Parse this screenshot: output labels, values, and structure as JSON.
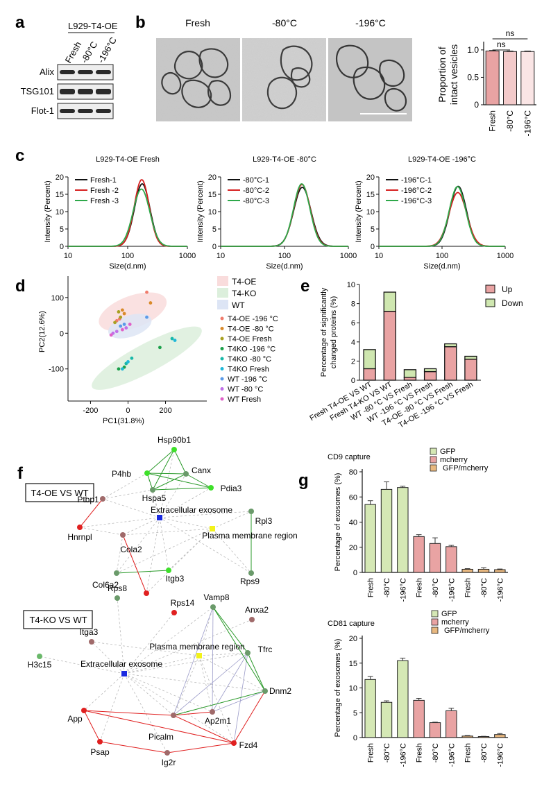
{
  "panel_letters": {
    "a": "a",
    "b": "b",
    "c": "c",
    "d": "d",
    "e": "e",
    "f": "f",
    "g": "g"
  },
  "panel_a": {
    "header": "L929-T4-OE",
    "lanes": [
      "Fresh",
      "-80°C",
      "-196°C"
    ],
    "markers": [
      "Alix",
      "TSG101",
      "Flot-1"
    ]
  },
  "panel_b": {
    "images": [
      "Fresh",
      "-80°C",
      "-196°C"
    ]
  },
  "chart_data": [
    {
      "id": "b_bar",
      "type": "bar",
      "ylabel": "Proportion of intact vesicles",
      "ylabel_lines": [
        "Proportion of",
        "intact vesicles"
      ],
      "categories": [
        "Fresh",
        "-80°C",
        "-196°C"
      ],
      "values": [
        0.98,
        0.97,
        0.97
      ],
      "errors": [
        0.01,
        0.01,
        0.01
      ],
      "colors": [
        "#e9a3a3",
        "#f3caca",
        "#fae5e5"
      ],
      "ylim": [
        0,
        1.1
      ],
      "yticks": [
        0,
        0.5,
        1.0
      ],
      "ytick_labels": [
        "0",
        "0.5",
        "1.0"
      ],
      "annotations": [
        "ns",
        "ns"
      ]
    },
    {
      "id": "c1",
      "type": "line",
      "title": "L929-T4-OE Fresh",
      "xlabel": "Size(d.nm)",
      "ylabel": "Intensity (Percent)",
      "xscale": "log",
      "xlim": [
        10,
        1000
      ],
      "xticks": [
        10,
        100,
        1000
      ],
      "ylim": [
        0,
        20
      ],
      "yticks": [
        0,
        5,
        10,
        15,
        20
      ],
      "series": [
        {
          "name": "Fresh-1",
          "color": "#111111",
          "peak": 18.0,
          "center": 175,
          "width": 0.13
        },
        {
          "name": "Fresh -2",
          "color": "#d62020",
          "peak": 19.2,
          "center": 172,
          "width": 0.125
        },
        {
          "name": "Fresh -3",
          "color": "#2ea84a",
          "peak": 16.5,
          "center": 170,
          "width": 0.14
        }
      ]
    },
    {
      "id": "c2",
      "type": "line",
      "title": "L929-T4-OE   -80°C",
      "xlabel": "Size(d.nm)",
      "ylabel": "Intensity (Percent)",
      "xscale": "log",
      "xlim": [
        10,
        1000
      ],
      "xticks": [
        10,
        100,
        1000
      ],
      "ylim": [
        0,
        20
      ],
      "yticks": [
        0,
        5,
        10,
        15,
        20
      ],
      "series": [
        {
          "name": "-80°C-1",
          "color": "#111111",
          "peak": 17.0,
          "center": 190,
          "width": 0.135
        },
        {
          "name": "-80°C-2",
          "color": "#d62020",
          "peak": 17.8,
          "center": 188,
          "width": 0.13
        },
        {
          "name": "-80°C-3",
          "color": "#2ea84a",
          "peak": 18.0,
          "center": 186,
          "width": 0.128
        }
      ]
    },
    {
      "id": "c3",
      "type": "line",
      "title": "L929-T4-OE   -196°C",
      "xlabel": "Size(d.nm)",
      "ylabel": "Intensity (Percent)",
      "xscale": "log",
      "xlim": [
        10,
        1000
      ],
      "xticks": [
        10,
        100,
        1000
      ],
      "ylim": [
        0,
        20
      ],
      "yticks": [
        0,
        5,
        10,
        15,
        20
      ],
      "series": [
        {
          "name": "-196°C-1",
          "color": "#111111",
          "peak": 17.3,
          "center": 180,
          "width": 0.13
        },
        {
          "name": "-196°C-2",
          "color": "#d62020",
          "peak": 15.5,
          "center": 178,
          "width": 0.14
        },
        {
          "name": "-196°C-3",
          "color": "#2ea84a",
          "peak": 17.2,
          "center": 176,
          "width": 0.13
        }
      ]
    },
    {
      "id": "d_pca",
      "type": "scatter",
      "xlabel": "PC1(31.8%)",
      "ylabel": "PC2(12.6%)",
      "xlim": [
        -320,
        420
      ],
      "ylim": [
        -190,
        160
      ],
      "xticks": [
        -200,
        0,
        200
      ],
      "yticks": [
        -100,
        0,
        100
      ],
      "group_legend": [
        {
          "name": "T4-OE",
          "color": "#f9dcdc"
        },
        {
          "name": "T4-KO",
          "color": "#dcefdc"
        },
        {
          "name": "WT",
          "color": "#dde5f5"
        }
      ],
      "series": [
        {
          "name": "T4-OE -196 °C",
          "color": "#f07c6c",
          "points": [
            [
              100,
              115
            ],
            [
              -45,
              40
            ],
            [
              -60,
              35
            ]
          ]
        },
        {
          "name": "T4-OE -80 °C",
          "color": "#d98a2a",
          "points": [
            [
              -30,
              65
            ],
            [
              120,
              85
            ],
            [
              -20,
              55
            ]
          ]
        },
        {
          "name": "T4-OE Fresh",
          "color": "#a8a020",
          "points": [
            [
              -50,
              60
            ],
            [
              -70,
              30
            ],
            [
              -40,
              45
            ]
          ]
        },
        {
          "name": "T4KO -196 °C",
          "color": "#1aa04a",
          "points": [
            [
              170,
              -40
            ],
            [
              -20,
              -95
            ],
            [
              -50,
              -100
            ]
          ]
        },
        {
          "name": "T4KO -80 °C",
          "color": "#18b8a8",
          "points": [
            [
              235,
              -15
            ],
            [
              -10,
              -85
            ],
            [
              20,
              -70
            ]
          ]
        },
        {
          "name": "T4KO Fresh",
          "color": "#20b8d8",
          "points": [
            [
              -30,
              -100
            ],
            [
              250,
              -20
            ],
            [
              0,
              -80
            ]
          ]
        },
        {
          "name": "WT -196 °C",
          "color": "#5a9ae8",
          "points": [
            [
              100,
              45
            ],
            [
              -40,
              20
            ],
            [
              -20,
              25
            ]
          ]
        },
        {
          "name": "WT -80 °C",
          "color": "#c070e8",
          "points": [
            [
              -80,
              0
            ],
            [
              -60,
              5
            ],
            [
              -10,
              15
            ]
          ]
        },
        {
          "name": "WT Fresh",
          "color": "#e060c8",
          "points": [
            [
              -90,
              -5
            ],
            [
              -30,
              10
            ],
            [
              10,
              25
            ]
          ]
        }
      ]
    },
    {
      "id": "e_bar",
      "type": "bar",
      "stacked": true,
      "ylabel": "Percentage of significantly changed proteins (%)",
      "ylabel_lines": [
        "Percentage of significantly",
        "changed proteins (%)"
      ],
      "categories": [
        "Fresh   T4-OE VS WT",
        "Fresh   T4-KO VS WT",
        "WT   -80 °C VS Fresh",
        "WT   -196 °C VS Fresh",
        "T4-OE   -80 °C VS Fresh",
        "T4-OE   -196 °C VS Fresh"
      ],
      "series": [
        {
          "name": "Up",
          "color": "#e9a3a3",
          "values": [
            1.2,
            7.2,
            0.3,
            0.9,
            3.5,
            2.2
          ]
        },
        {
          "name": "Down",
          "color": "#cfe7b0",
          "values": [
            2.0,
            2.0,
            0.8,
            0.3,
            0.3,
            0.3
          ]
        }
      ],
      "ylim": [
        0,
        10
      ],
      "yticks": [
        0,
        2,
        4,
        6,
        8,
        10
      ]
    },
    {
      "id": "g_cd9",
      "type": "bar",
      "title": "CD9 capture",
      "ylabel": "Percentage of exosomes (%)",
      "categories": [
        "Fresh",
        "-80°C",
        "-196°C",
        "Fresh",
        "-80°C",
        "-196°C",
        "Fresh",
        "-80°C",
        "-196°C"
      ],
      "values": [
        54,
        66,
        67.5,
        28.5,
        23,
        20.5,
        2.5,
        2.5,
        2.2
      ],
      "errors": [
        3,
        6,
        1,
        1.5,
        4.5,
        1,
        0.5,
        1.2,
        0.5
      ],
      "groups": [
        0,
        0,
        0,
        1,
        1,
        1,
        2,
        2,
        2
      ],
      "legend": [
        {
          "name": "GFP",
          "color": "#d5e8b5"
        },
        {
          "name": "mcherry",
          "color": "#e9a3a3"
        },
        {
          "name": "GFP/mcherry",
          "color": "#e8b880"
        }
      ],
      "ylim": [
        0,
        80
      ],
      "yticks": [
        0,
        20,
        40,
        60,
        80
      ]
    },
    {
      "id": "g_cd81",
      "type": "bar",
      "title": "CD81 capture",
      "ylabel": "Percentage of exosomes (%)",
      "categories": [
        "Fresh",
        "-80°C",
        "-196°C",
        "Fresh",
        "-80°C",
        "-196°C",
        "Fresh",
        "-80°C",
        "-196°C"
      ],
      "values": [
        11.7,
        7.1,
        15.5,
        7.5,
        3.0,
        5.4,
        0.3,
        0.2,
        0.6
      ],
      "errors": [
        0.6,
        0.3,
        0.5,
        0.4,
        0.1,
        0.5,
        0.1,
        0.05,
        0.2
      ],
      "groups": [
        0,
        0,
        0,
        1,
        1,
        1,
        2,
        2,
        2
      ],
      "legend": [
        {
          "name": "GFP",
          "color": "#d5e8b5"
        },
        {
          "name": "mcherry",
          "color": "#e9a3a3"
        },
        {
          "name": "GFP/mcherry",
          "color": "#e8b880"
        }
      ],
      "ylim": [
        0,
        20
      ],
      "yticks": [
        0,
        5,
        10,
        15,
        20
      ]
    }
  ],
  "panel_f": {
    "net1_title": "T4-OE VS  WT",
    "net2_title": "T4-KO VS WT",
    "net1_nodes": [
      "Hsp90b1",
      "P4hb",
      "Canx",
      "Hspa5",
      "Pdia3",
      "Ptbp1",
      "Extracellular exosome",
      "Rpl3",
      "Hnrnpl",
      "Cola2",
      "Plasma membrane region",
      "Itgb3",
      "Rps9",
      "Col6a2"
    ],
    "net2_nodes": [
      "Rps8",
      "Rps14",
      "Vamp8",
      "Anxa2",
      "Itga3",
      "H3c15",
      "Plasma membrane region",
      "Tfrc",
      "Extracellular exosome",
      "Dnm2",
      "App",
      "Ap2m1",
      "Picalm",
      "Fzd4",
      "Psap",
      "Ig2r"
    ]
  }
}
